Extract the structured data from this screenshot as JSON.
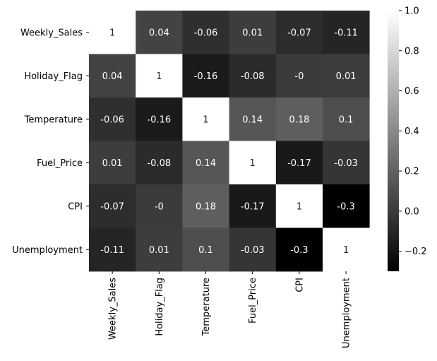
{
  "chart_data": {
    "type": "heatmap",
    "title": "",
    "xlabel": "",
    "ylabel": "",
    "rows": [
      "Weekly_Sales",
      "Holiday_Flag",
      "Temperature",
      "Fuel_Price",
      "CPI",
      "Unemployment"
    ],
    "columns": [
      "Weekly_Sales",
      "Holiday_Flag",
      "Temperature",
      "Fuel_Price",
      "CPI",
      "Unemployment"
    ],
    "values": [
      [
        1,
        0.04,
        -0.06,
        0.01,
        -0.07,
        -0.11
      ],
      [
        0.04,
        1,
        -0.16,
        -0.08,
        0,
        0.01
      ],
      [
        -0.06,
        -0.16,
        1,
        0.14,
        0.18,
        0.1
      ],
      [
        0.01,
        -0.08,
        0.14,
        1,
        -0.17,
        -0.03
      ],
      [
        -0.07,
        0,
        0.18,
        -0.17,
        1,
        -0.3
      ],
      [
        -0.11,
        0.01,
        0.1,
        -0.03,
        -0.3,
        1
      ]
    ],
    "cell_labels": [
      [
        "1",
        "0.04",
        "-0.06",
        "0.01",
        "-0.07",
        "-0.11"
      ],
      [
        "0.04",
        "1",
        "-0.16",
        "-0.08",
        "-0",
        "0.01"
      ],
      [
        "-0.06",
        "-0.16",
        "1",
        "0.14",
        "0.18",
        "0.1"
      ],
      [
        "0.01",
        "-0.08",
        "0.14",
        "1",
        "-0.17",
        "-0.03"
      ],
      [
        "-0.07",
        "-0",
        "0.18",
        "-0.17",
        "1",
        "-0.3"
      ],
      [
        "-0.11",
        "0.01",
        "0.1",
        "-0.03",
        "-0.3",
        "1"
      ]
    ],
    "colormap": "gray",
    "color_low": "#000000",
    "color_high": "#ffffff",
    "text_color_dark_bg": "#ffffff",
    "text_color_light_bg": "#262626",
    "vmin": -0.3,
    "vmax": 1,
    "colorbar": {
      "ticks": [
        -0.2,
        0.0,
        0.2,
        0.4,
        0.6,
        0.8,
        1.0
      ],
      "tick_labels": [
        "−0.2",
        "0.0",
        "0.2",
        "0.4",
        "0.6",
        "0.8",
        "1.0"
      ]
    },
    "grid": false,
    "legend": "colorbar-right"
  }
}
